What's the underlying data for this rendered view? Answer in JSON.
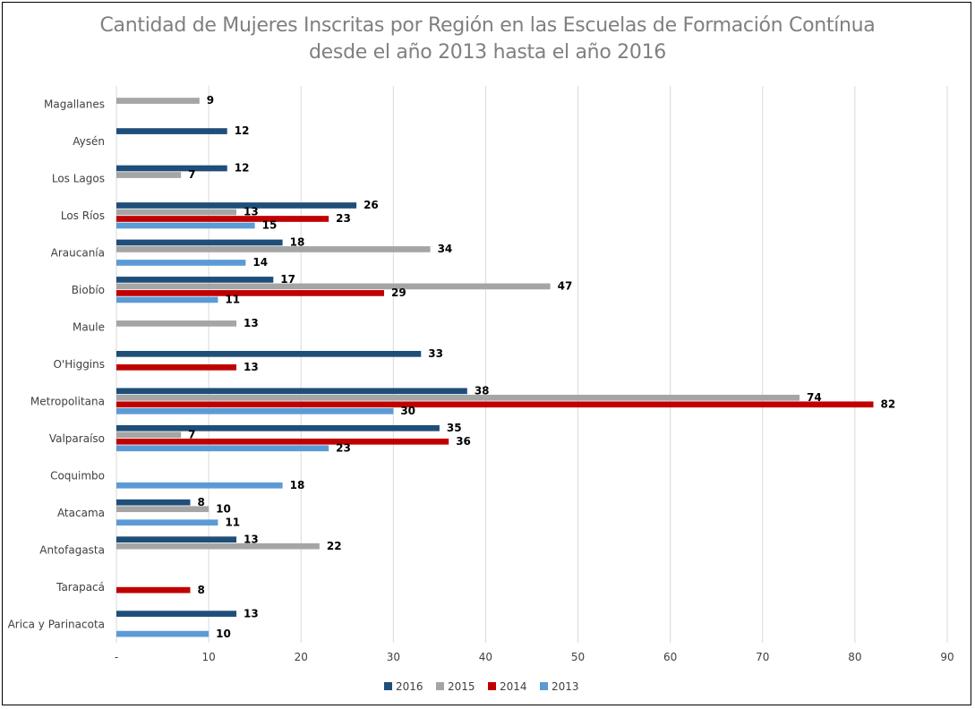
{
  "chart_data": {
    "type": "bar",
    "orientation": "horizontal",
    "title_line1": "Cantidad de Mujeres Inscritas por Región en las Escuelas de Formación Contínua",
    "title_line2": "desde el año 2013 hasta el año 2016",
    "categories": [
      "Magallanes",
      "Aysén",
      "Los Lagos",
      "Los Ríos",
      "Araucanía",
      "Biobío",
      "Maule",
      "O'Higgins",
      "Metropolitana",
      "Valparaíso",
      "Coquimbo",
      "Atacama",
      "Antofagasta",
      "Tarapacá",
      "Arica y Parinacota"
    ],
    "series": [
      {
        "name": "2016",
        "color": "#1f4e79",
        "values": [
          null,
          12,
          12,
          26,
          18,
          17,
          null,
          33,
          38,
          35,
          null,
          8,
          13,
          null,
          13
        ]
      },
      {
        "name": "2015",
        "color": "#a5a5a5",
        "values": [
          9,
          null,
          7,
          13,
          34,
          47,
          13,
          null,
          74,
          7,
          null,
          10,
          22,
          null,
          null
        ]
      },
      {
        "name": "2014",
        "color": "#c00000",
        "values": [
          null,
          null,
          null,
          23,
          null,
          29,
          null,
          13,
          82,
          36,
          null,
          null,
          null,
          8,
          null
        ]
      },
      {
        "name": "2013",
        "color": "#5b9bd5",
        "values": [
          null,
          null,
          null,
          15,
          14,
          11,
          null,
          null,
          30,
          23,
          18,
          11,
          null,
          null,
          10
        ]
      }
    ],
    "x_ticks": [
      "-",
      "10",
      "20",
      "30",
      "40",
      "50",
      "60",
      "70",
      "80",
      "90"
    ],
    "xlim": [
      0,
      90
    ],
    "grid": true,
    "legend_position": "bottom"
  }
}
